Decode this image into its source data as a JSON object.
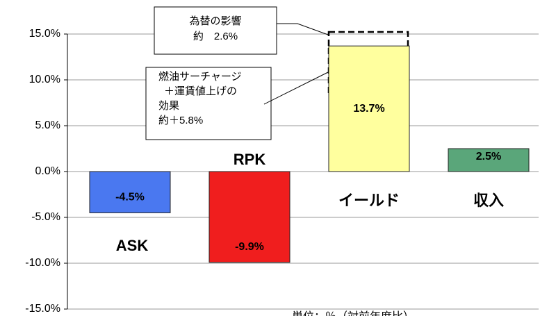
{
  "chart_data": {
    "type": "bar",
    "categories": [
      "ASK",
      "RPK",
      "イールド",
      "収入"
    ],
    "values": [
      -4.5,
      -9.9,
      13.7,
      2.5
    ],
    "value_labels": [
      "-4.5%",
      "-9.9%",
      "13.7%",
      "2.5%"
    ],
    "colors": [
      "#4a78f0",
      "#f01e1e",
      "#ffff9e",
      "#5aa67a"
    ],
    "ylim": [
      -15,
      15
    ],
    "yticks": [
      {
        "value": 15,
        "label": "15.0%"
      },
      {
        "value": 10,
        "label": "10.0%"
      },
      {
        "value": 5,
        "label": "5.0%"
      },
      {
        "value": 0,
        "label": "0.0%"
      },
      {
        "value": -5,
        "label": "-5.0%"
      },
      {
        "value": -10,
        "label": "-10.0%"
      },
      {
        "value": -15,
        "label": "-15.0%"
      }
    ],
    "grid": true,
    "annotations": [
      [
        "為替の影響",
        "約　2.6%"
      ],
      [
        "燃油サーチャージ",
        "＋運賃値上げの",
        "効果",
        "約＋5.8%"
      ]
    ],
    "note": "単位：％（対前年度比）"
  }
}
